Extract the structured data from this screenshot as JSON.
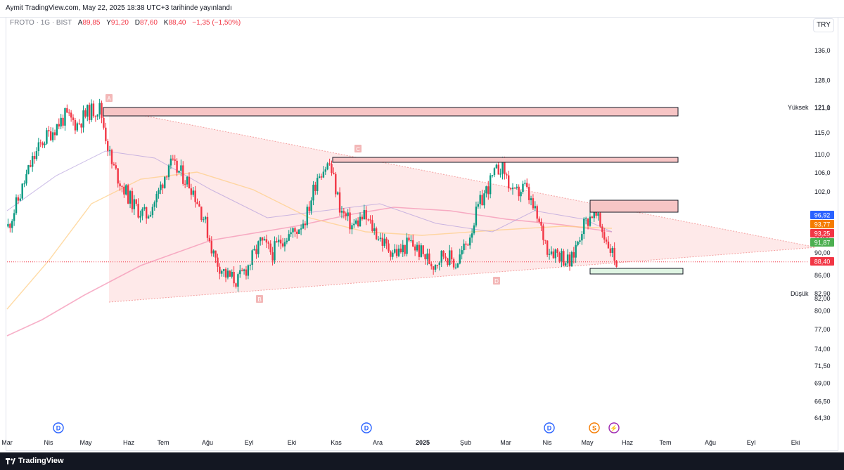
{
  "header": {
    "published": "Aymit TradingView.com, May 22, 2025 18:38 UTC+3 tarihinde yayınlandı"
  },
  "legend": {
    "symbol": "FROTO · 1G · BIST",
    "o_label": "A",
    "o_value": "89,85",
    "h_label": "Y",
    "h_value": "91,20",
    "l_label": "D",
    "l_value": "87,60",
    "c_label": "K",
    "c_value": "88,40",
    "change": "−1,35 (−1,50%)"
  },
  "currency_button": "TRY",
  "footer": {
    "brand": "TradingView"
  },
  "colors": {
    "up": "#089981",
    "down": "#f23645",
    "zone": "#f7c5c5",
    "triangle": "#fde2e2",
    "accent": "#2962ff"
  },
  "chart_data": {
    "type": "candlestick",
    "symbol": "FROTO",
    "interval": "1G",
    "exchange": "BIST",
    "currency": "TRY",
    "x_labels": [
      "Mar",
      "Nis",
      "May",
      "Haz",
      "Tem",
      "Ağu",
      "Eyl",
      "Eki",
      "Kas",
      "Ara",
      "2025",
      "Şub",
      "Mar",
      "Nis",
      "May",
      "Haz",
      "Tem",
      "Ağu",
      "Eyl",
      "Eki"
    ],
    "y_ticks": [
      "136,0",
      "128,0",
      "121,0",
      "115,0",
      "110,0",
      "106,0",
      "102,0",
      "97,00",
      "93,25",
      "90,00",
      "86,00",
      "82,00",
      "80,00",
      "77,00",
      "74,00",
      "71,50",
      "69,00",
      "66,50",
      "64,30"
    ],
    "ylim": [
      64.3,
      136
    ],
    "y_scale": "log",
    "high_label": "Yüksek",
    "high_value": "121,1",
    "low_label": "Düşük",
    "low_value": "82,90",
    "price_tags": [
      {
        "value": "96,92",
        "color": "#2962ff"
      },
      {
        "value": "93,77",
        "color": "#f57c00"
      },
      {
        "value": "93,25",
        "color": "#f23645"
      },
      {
        "value": "91,87",
        "color": "#4caf50"
      },
      {
        "value": "88,40",
        "color": "#f23645"
      }
    ],
    "last_price": 88.4,
    "pattern_points": [
      "A",
      "B",
      "C",
      "D"
    ],
    "event_markers": [
      "D",
      "D",
      "D",
      "S",
      "⚡"
    ],
    "approx_close_path": [
      95,
      101,
      108,
      113,
      116,
      119,
      117,
      120,
      121,
      108,
      103,
      99,
      97,
      101,
      108,
      106,
      103,
      97,
      89,
      86,
      85,
      88,
      92,
      90,
      93,
      94,
      97,
      106,
      108,
      98,
      95,
      97,
      94,
      91,
      90,
      92,
      90,
      88,
      90,
      88,
      92,
      99,
      104,
      108,
      101,
      103,
      97,
      91,
      90,
      88,
      95,
      98,
      93,
      88.4
    ]
  }
}
